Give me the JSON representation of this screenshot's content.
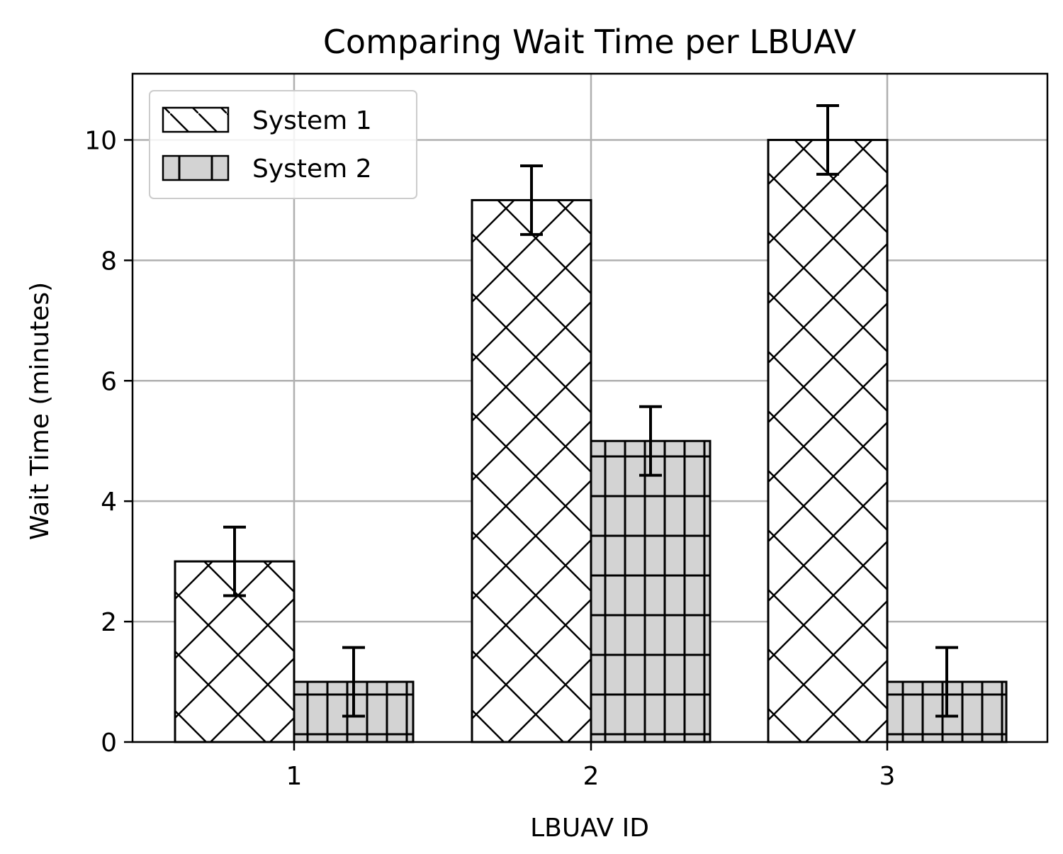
{
  "chart_data": {
    "type": "bar",
    "title": "Comparing Wait Time per LBUAV",
    "xlabel": "LBUAV ID",
    "ylabel": "Wait Time (minutes)",
    "categories": [
      "1",
      "2",
      "3"
    ],
    "series": [
      {
        "name": "System 1",
        "values": [
          3,
          9,
          10
        ],
        "errors": [
          0.57,
          0.57,
          0.57
        ],
        "color": "#ffffff",
        "hatch": "cross-diagonal"
      },
      {
        "name": "System 2",
        "values": [
          1,
          5,
          1
        ],
        "errors": [
          0.57,
          0.57,
          0.57
        ],
        "color": "#d3d3d3",
        "hatch": "grid"
      }
    ],
    "ylim": [
      0,
      11.1
    ],
    "yticks": [
      "0",
      "2",
      "4",
      "6",
      "8",
      "10"
    ],
    "grid": true,
    "legend_position": "top-left"
  }
}
